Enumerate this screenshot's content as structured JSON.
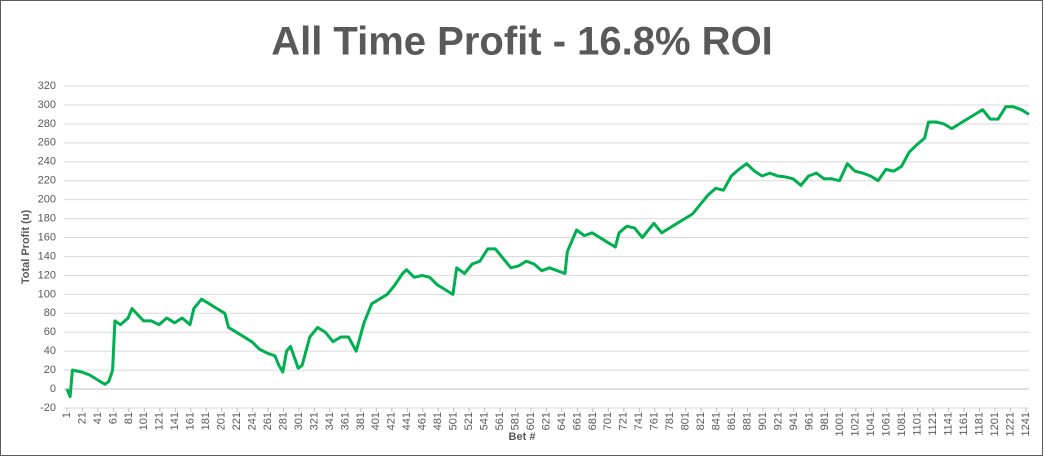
{
  "chart_data": {
    "type": "line",
    "title": "All Time Profit - 16.8% ROI",
    "x_label": "Bet #",
    "y_label": "Total Profit (u)",
    "x": [
      1,
      5,
      8,
      20,
      30,
      40,
      50,
      55,
      60,
      63,
      70,
      80,
      85,
      100,
      110,
      120,
      130,
      140,
      150,
      160,
      165,
      175,
      185,
      195,
      205,
      210,
      220,
      230,
      240,
      250,
      260,
      270,
      275,
      280,
      285,
      290,
      300,
      305,
      315,
      325,
      335,
      345,
      355,
      365,
      375,
      385,
      395,
      405,
      415,
      425,
      435,
      440,
      450,
      460,
      470,
      480,
      490,
      500,
      505,
      515,
      525,
      535,
      545,
      555,
      565,
      575,
      585,
      595,
      605,
      615,
      625,
      635,
      645,
      648,
      660,
      670,
      680,
      690,
      700,
      710,
      715,
      725,
      735,
      745,
      760,
      770,
      780,
      790,
      800,
      810,
      820,
      830,
      840,
      850,
      860,
      870,
      880,
      890,
      900,
      910,
      920,
      930,
      940,
      950,
      960,
      970,
      980,
      990,
      1000,
      1010,
      1020,
      1030,
      1040,
      1050,
      1060,
      1070,
      1080,
      1090,
      1100,
      1110,
      1115,
      1125,
      1135,
      1145,
      1155,
      1165,
      1175,
      1185,
      1195,
      1205,
      1215,
      1225,
      1235,
      1245
    ],
    "series": [
      {
        "name": "Total Profit",
        "color": "#00b050",
        "values": [
          0,
          -8,
          20,
          18,
          15,
          10,
          5,
          8,
          20,
          72,
          68,
          75,
          85,
          72,
          72,
          68,
          75,
          70,
          75,
          68,
          85,
          95,
          90,
          85,
          80,
          65,
          60,
          55,
          50,
          42,
          38,
          35,
          25,
          18,
          40,
          45,
          22,
          25,
          55,
          65,
          60,
          50,
          55,
          55,
          40,
          70,
          90,
          95,
          100,
          110,
          122,
          126,
          118,
          120,
          118,
          110,
          105,
          100,
          128,
          122,
          132,
          135,
          148,
          148,
          138,
          128,
          130,
          135,
          132,
          125,
          128,
          125,
          122,
          145,
          168,
          162,
          165,
          160,
          155,
          150,
          165,
          172,
          170,
          160,
          175,
          165,
          170,
          175,
          180,
          185,
          195,
          205,
          212,
          210,
          225,
          232,
          238,
          230,
          225,
          228,
          225,
          224,
          222,
          215,
          225,
          228,
          222,
          222,
          220,
          238,
          230,
          228,
          225,
          220,
          232,
          230,
          235,
          250,
          258,
          265,
          282,
          282,
          280,
          275,
          280,
          285,
          290,
          295,
          285,
          285,
          298,
          298,
          295,
          290
        ]
      }
    ],
    "xlim": [
      1,
      1245
    ],
    "xticks": [
      1,
      21,
      41,
      61,
      81,
      101,
      121,
      141,
      161,
      181,
      201,
      221,
      241,
      261,
      281,
      301,
      321,
      341,
      361,
      381,
      401,
      421,
      441,
      461,
      481,
      501,
      521,
      541,
      561,
      581,
      601,
      621,
      641,
      661,
      681,
      701,
      721,
      741,
      761,
      781,
      801,
      821,
      841,
      861,
      881,
      901,
      921,
      941,
      961,
      981,
      1001,
      1021,
      1041,
      1061,
      1081,
      1101,
      1121,
      1141,
      1161,
      1181,
      1201,
      1221,
      1241
    ],
    "ylim": [
      -20,
      320
    ],
    "yticks": [
      -20,
      0,
      20,
      40,
      60,
      80,
      100,
      120,
      140,
      160,
      180,
      200,
      220,
      240,
      260,
      280,
      300,
      320
    ],
    "grid": true
  }
}
